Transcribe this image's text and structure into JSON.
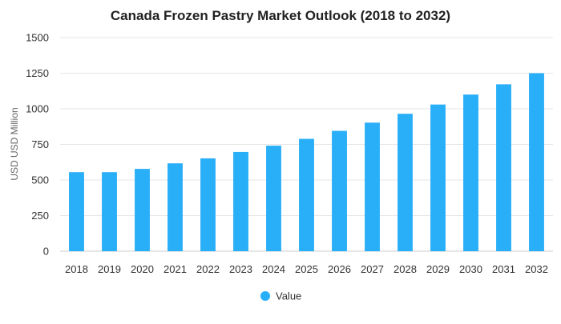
{
  "chart_data": {
    "type": "bar",
    "title": "Canada Frozen Pastry Market Outlook (2018 to 2032)",
    "xlabel": "",
    "ylabel": "USD USD Million",
    "ylim": [
      0,
      1500
    ],
    "yticks": [
      0,
      250,
      500,
      750,
      1000,
      1250,
      1500
    ],
    "grid": true,
    "legend_position": "bottom",
    "categories": [
      "2018",
      "2019",
      "2020",
      "2021",
      "2022",
      "2023",
      "2024",
      "2025",
      "2026",
      "2027",
      "2028",
      "2029",
      "2030",
      "2031",
      "2032"
    ],
    "series": [
      {
        "name": "Value",
        "color": "#29aef8",
        "values": [
          555,
          555,
          578,
          617,
          652,
          697,
          741,
          789,
          845,
          903,
          965,
          1030,
          1100,
          1172,
          1250
        ]
      }
    ]
  }
}
